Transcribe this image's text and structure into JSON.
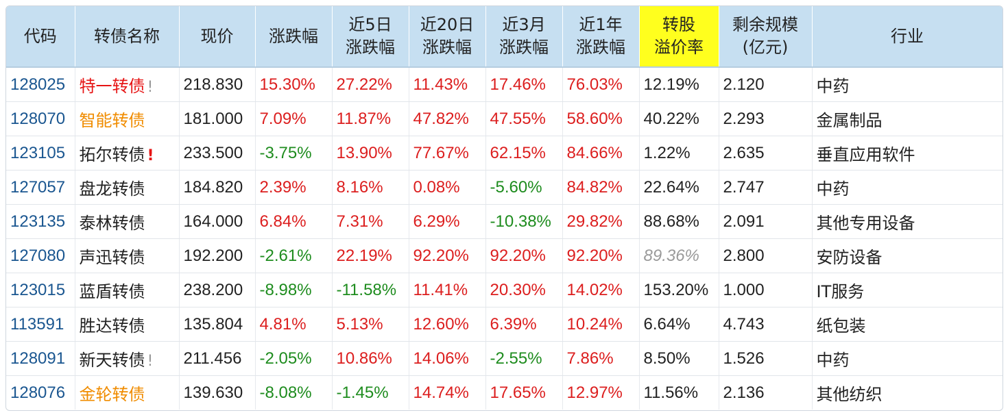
{
  "headers": [
    [
      "代码"
    ],
    [
      "转债名称"
    ],
    [
      "现价"
    ],
    [
      "涨跌幅"
    ],
    [
      "近5日",
      "涨跌幅"
    ],
    [
      "近20日",
      "涨跌幅"
    ],
    [
      "近3月",
      "涨跌幅"
    ],
    [
      "近1年",
      "涨跌幅"
    ],
    [
      "转股",
      "溢价率"
    ],
    [
      "剩余规模",
      "(亿元)"
    ],
    [
      "行业"
    ]
  ],
  "highlight_column": "转股溢价率",
  "colors": {
    "header_bg": "#c6dff1",
    "highlight": "#ffff1e",
    "up": "#dc1e1e",
    "down": "#1e8c1e",
    "code": "#1a5690",
    "orange_name": "#f08c00"
  },
  "rows": [
    {
      "code": "128025",
      "name": "特一转债",
      "name_color": "red",
      "mark": "!",
      "mark_style": "gray",
      "price": "218.830",
      "chg": "15.30%",
      "chg5": "27.22%",
      "chg20": "11.43%",
      "chg3m": "17.46%",
      "chg1y": "76.03%",
      "premium": "12.19%",
      "premium_style": "normal",
      "scale": "2.120",
      "industry": "中药"
    },
    {
      "code": "128070",
      "name": "智能转债",
      "name_color": "orange",
      "mark": "",
      "mark_style": "",
      "price": "181.000",
      "chg": "7.09%",
      "chg5": "11.87%",
      "chg20": "47.82%",
      "chg3m": "47.55%",
      "chg1y": "58.60%",
      "premium": "40.22%",
      "premium_style": "normal",
      "scale": "2.293",
      "industry": "金属制品"
    },
    {
      "code": "123105",
      "name": "拓尔转债",
      "name_color": "black",
      "mark": "!",
      "mark_style": "red",
      "price": "233.500",
      "chg": "-3.75%",
      "chg5": "13.90%",
      "chg20": "77.67%",
      "chg3m": "62.15%",
      "chg1y": "84.66%",
      "premium": "1.22%",
      "premium_style": "normal",
      "scale": "2.635",
      "industry": "垂直应用软件"
    },
    {
      "code": "127057",
      "name": "盘龙转债",
      "name_color": "black",
      "mark": "",
      "mark_style": "",
      "price": "184.820",
      "chg": "2.39%",
      "chg5": "8.16%",
      "chg20": "0.08%",
      "chg3m": "-5.60%",
      "chg1y": "84.82%",
      "premium": "22.64%",
      "premium_style": "normal",
      "scale": "2.747",
      "industry": "中药"
    },
    {
      "code": "123135",
      "name": "泰林转债",
      "name_color": "black",
      "mark": "",
      "mark_style": "",
      "price": "164.000",
      "chg": "6.84%",
      "chg5": "7.31%",
      "chg20": "6.29%",
      "chg3m": "-10.38%",
      "chg1y": "29.82%",
      "premium": "88.68%",
      "premium_style": "normal",
      "scale": "2.091",
      "industry": "其他专用设备"
    },
    {
      "code": "127080",
      "name": "声迅转债",
      "name_color": "black",
      "mark": "",
      "mark_style": "",
      "price": "192.200",
      "chg": "-2.61%",
      "chg5": "22.19%",
      "chg20": "92.20%",
      "chg3m": "92.20%",
      "chg1y": "92.20%",
      "premium": "89.36%",
      "premium_style": "italic-gray",
      "scale": "2.800",
      "industry": "安防设备"
    },
    {
      "code": "123015",
      "name": "蓝盾转债",
      "name_color": "black",
      "mark": "",
      "mark_style": "",
      "price": "238.200",
      "chg": "-8.98%",
      "chg5": "-11.58%",
      "chg20": "11.41%",
      "chg3m": "20.30%",
      "chg1y": "14.02%",
      "premium": "153.20%",
      "premium_style": "normal",
      "scale": "1.000",
      "industry": "IT服务"
    },
    {
      "code": "113591",
      "name": "胜达转债",
      "name_color": "black",
      "mark": "",
      "mark_style": "",
      "price": "135.804",
      "chg": "4.81%",
      "chg5": "5.13%",
      "chg20": "12.60%",
      "chg3m": "6.39%",
      "chg1y": "10.24%",
      "premium": "6.64%",
      "premium_style": "normal",
      "scale": "4.743",
      "industry": "纸包装"
    },
    {
      "code": "128091",
      "name": "新天转债",
      "name_color": "black",
      "mark": "!",
      "mark_style": "gray",
      "price": "211.456",
      "chg": "-2.05%",
      "chg5": "10.86%",
      "chg20": "14.06%",
      "chg3m": "-2.55%",
      "chg1y": "7.86%",
      "premium": "8.50%",
      "premium_style": "normal",
      "scale": "1.526",
      "industry": "中药"
    },
    {
      "code": "128076",
      "name": "金轮转债",
      "name_color": "orange",
      "mark": "",
      "mark_style": "",
      "price": "139.630",
      "chg": "-8.08%",
      "chg5": "-1.45%",
      "chg20": "14.74%",
      "chg3m": "17.65%",
      "chg1y": "12.97%",
      "premium": "11.56%",
      "premium_style": "normal",
      "scale": "2.136",
      "industry": "其他纺织"
    }
  ]
}
